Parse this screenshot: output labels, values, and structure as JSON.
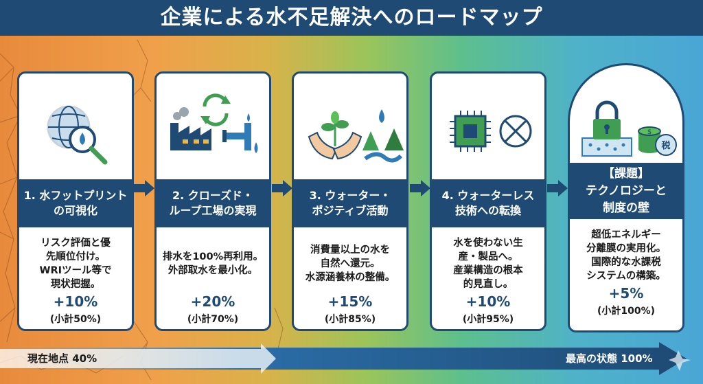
{
  "title": "企業による水不足解決へのロードマップ",
  "steps": [
    {
      "heading": "1. 水フットプリント\nの可視化",
      "body": "リスク評価と優\n先順位付け。\nWRIツール等で\n現状把握。",
      "increase": "+10%",
      "subtotal": "(小計50%)",
      "icons": [
        "globe-magnifier-icon"
      ]
    },
    {
      "heading": "2. クローズド・\nループ工場の実現",
      "body": "排水を100%再利用。\n外部取水を最小化。",
      "increase": "+20%",
      "subtotal": "(小計70%)",
      "icons": [
        "factory-icon",
        "recycle-icon",
        "water-pipe-icon"
      ]
    },
    {
      "heading": "3. ウォーター・\nポジティブ活動",
      "body": "消費量以上の水を\n自然へ還元。\n水源涵養林の整備。",
      "increase": "+15%",
      "subtotal": "(小計85%)",
      "icons": [
        "hands-sprout-icon",
        "forest-river-icon"
      ]
    },
    {
      "heading": "4. ウォーターレス\n技術への転換",
      "body": "水を使わない生\n産・製品へ。\n産業構造の根本\n的見直し。",
      "increase": "+10%",
      "subtotal": "(小計95%)",
      "icons": [
        "chip-icon",
        "no-water-icon"
      ]
    },
    {
      "heading": "【課題】\nテクノロジーと\n制度の壁",
      "body": "超低エネルギー\n分離膜の実用化。\n国際的な水課税\nシステムの構築。",
      "increase": "+5%",
      "subtotal": "(小計100%)",
      "icons": [
        "lock-membrane-icon",
        "tax-coins-icon"
      ]
    }
  ],
  "progress": {
    "start_label": "現在地点 40%",
    "end_label": "最高の状態 100%",
    "current_fraction": 0.4
  },
  "colors": {
    "navy": "#1e4a73",
    "accent_blue": "#2e7bb8",
    "green": "#3f9e52",
    "orange": "#e88a3c"
  }
}
